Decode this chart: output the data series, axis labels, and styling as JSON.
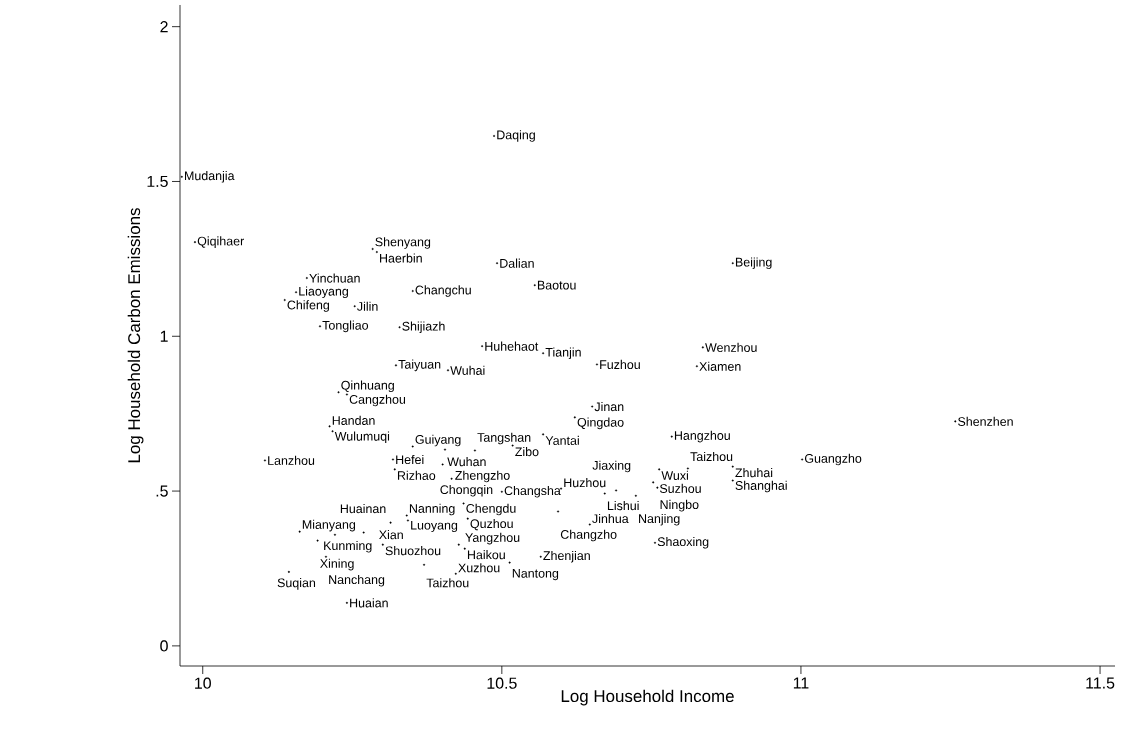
{
  "chart_data": {
    "type": "scatter",
    "xlabel": "Log Household Income",
    "ylabel": "Log Household Carbon Emissions",
    "xlim": [
      9.962,
      11.525
    ],
    "ylim": [
      -0.065,
      2.07
    ],
    "xticks": [
      10,
      10.5,
      11,
      11.5
    ],
    "yticks": [
      0,
      {
        "value": 0.5,
        "label": ".5"
      },
      1,
      1.5,
      2
    ],
    "series": [
      {
        "color": "#000000",
        "x": [
          10.487,
          9.965,
          9.987,
          10.284,
          10.291,
          10.492,
          10.886,
          10.174,
          10.555,
          10.156,
          10.351,
          10.137,
          10.254,
          10.196,
          10.329,
          10.467,
          10.569,
          10.836,
          10.659,
          10.826,
          10.323,
          10.41,
          10.227,
          10.241,
          10.651,
          10.622,
          11.258,
          10.569,
          10.784,
          10.212,
          10.217,
          10.351,
          10.405,
          10.455,
          10.518,
          10.104,
          10.318,
          10.401,
          10.321,
          11.002,
          10.763,
          10.811,
          10.886,
          10.886,
          10.416,
          10.753,
          10.76,
          10.5,
          10.599,
          10.672,
          10.691,
          10.724,
          10.436,
          10.594,
          10.443,
          10.647,
          10.341,
          10.343,
          10.314,
          10.162,
          10.221,
          10.269,
          10.192,
          10.301,
          10.428,
          10.438,
          10.756,
          10.565,
          10.513,
          10.206,
          10.37,
          10.423,
          10.144,
          10.241
        ],
        "values": [
          1.647,
          1.515,
          1.304,
          1.282,
          1.272,
          1.236,
          1.236,
          1.188,
          1.165,
          1.142,
          1.146,
          1.117,
          1.097,
          1.032,
          1.029,
          0.968,
          0.945,
          0.964,
          0.909,
          0.903,
          0.906,
          0.89,
          0.819,
          0.812,
          0.773,
          0.738,
          0.725,
          0.683,
          0.676,
          0.709,
          0.693,
          0.644,
          0.634,
          0.631,
          0.647,
          0.599,
          0.602,
          0.586,
          0.57,
          0.602,
          0.57,
          0.573,
          0.579,
          0.534,
          0.54,
          0.528,
          0.511,
          0.498,
          0.508,
          0.492,
          0.502,
          0.485,
          0.46,
          0.434,
          0.411,
          0.392,
          0.421,
          0.405,
          0.398,
          0.369,
          0.359,
          0.366,
          0.34,
          0.327,
          0.327,
          0.314,
          0.333,
          0.288,
          0.269,
          0.288,
          0.262,
          0.233,
          0.239,
          0.139
        ],
        "value_labels": [
          "Daqing",
          "Mudanjia",
          "Qiqihaer",
          "Shenyang",
          "Haerbin",
          "Dalian",
          "Beijing",
          "Yinchuan",
          "Baotou",
          "Liaoyang",
          "Changchu",
          "Chifeng",
          "Jilin",
          "Tongliao",
          "Shijiazh",
          "Huhehaot",
          "Tianjin",
          "Wenzhou",
          "Fuzhou",
          "Xiamen",
          "Taiyuan",
          "Wuhai",
          "Qinhuang",
          "Cangzhou",
          "Jinan",
          "Qingdao",
          "Shenzhen",
          "Yantai",
          "Hangzhou",
          "Handan",
          "Wulumuqi",
          "Guiyang",
          "Wuhan",
          "Tangshan",
          "Zibo",
          "Lanzhou",
          "Hefei",
          "Zhengzho",
          "Rizhao",
          "Guangzho",
          "Wuxi",
          "Taizhou",
          "Zhuhai",
          "Shanghai",
          "Chongqin",
          "Suzhou",
          "Ningbo",
          "Changsha",
          "Huzhou",
          "Lishui",
          "Jiaxing",
          "Nanjing",
          "Chengdu",
          "Changzho",
          "Quzhou",
          "Jinhua",
          "Nanning",
          "Luoyang",
          "Xian",
          "Mianyang",
          "Kunming",
          "Huainan",
          "Xining",
          "Shuozhou",
          "Yangzhou",
          "Haikou",
          "Shaoxing",
          "Zhenjian",
          "Nantong",
          "Nanchang",
          "Taizhou",
          "Xuzhou",
          "Suqian",
          "Huaian"
        ]
      }
    ]
  }
}
